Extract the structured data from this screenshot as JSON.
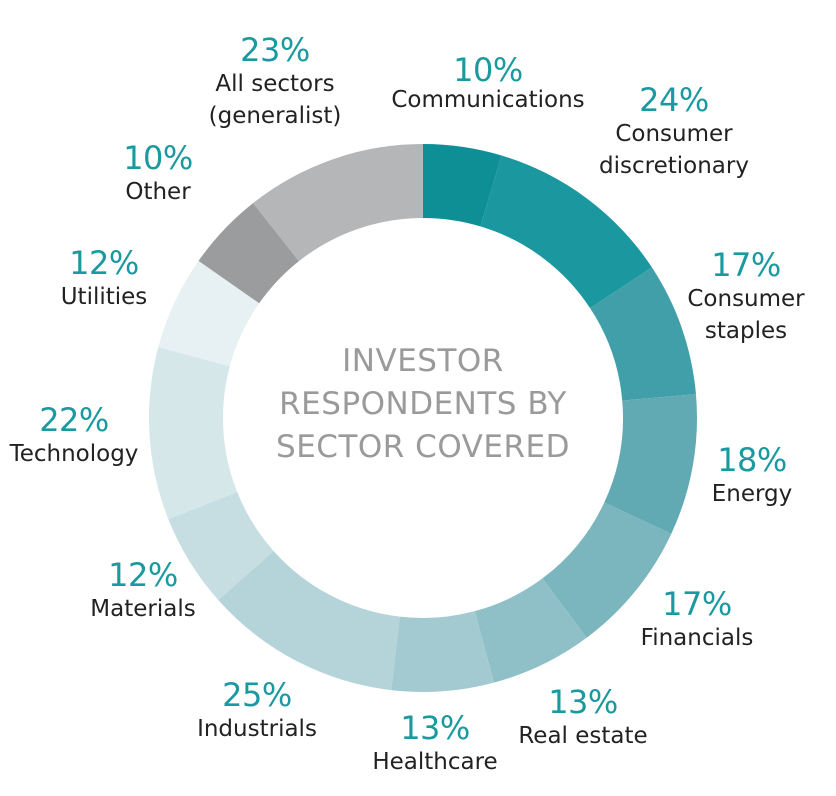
{
  "chart_data": {
    "type": "pie",
    "center_title": [
      "INVESTOR",
      "RESPONDENTS BY",
      "SECTOR COVERED"
    ],
    "slices": [
      {
        "id": "communications",
        "percent_label": "10%",
        "label_lines": [
          "Communications"
        ],
        "value": 10,
        "color": "#0e8f96"
      },
      {
        "id": "consumer-discretionary",
        "percent_label": "24%",
        "label_lines": [
          "Consumer",
          "discretionary"
        ],
        "value": 24,
        "color": "#1b97a0"
      },
      {
        "id": "consumer-staples",
        "percent_label": "17%",
        "label_lines": [
          "Consumer",
          "staples"
        ],
        "value": 17,
        "color": "#419fa9"
      },
      {
        "id": "energy",
        "percent_label": "18%",
        "label_lines": [
          "Energy"
        ],
        "value": 18,
        "color": "#62aab3"
      },
      {
        "id": "financials",
        "percent_label": "17%",
        "label_lines": [
          "Financials"
        ],
        "value": 17,
        "color": "#7bb5bd"
      },
      {
        "id": "real-estate",
        "percent_label": "13%",
        "label_lines": [
          "Real estate"
        ],
        "value": 13,
        "color": "#8fc0c7"
      },
      {
        "id": "healthcare",
        "percent_label": "13%",
        "label_lines": [
          "Healthcare"
        ],
        "value": 13,
        "color": "#a3cad0"
      },
      {
        "id": "industrials",
        "percent_label": "25%",
        "label_lines": [
          "Industrials"
        ],
        "value": 25,
        "color": "#b5d4d9"
      },
      {
        "id": "materials",
        "percent_label": "12%",
        "label_lines": [
          "Materials"
        ],
        "value": 12,
        "color": "#c6dee2"
      },
      {
        "id": "technology",
        "percent_label": "22%",
        "label_lines": [
          "Technology"
        ],
        "value": 22,
        "color": "#d6e7ea"
      },
      {
        "id": "utilities",
        "percent_label": "12%",
        "label_lines": [
          "Utilities"
        ],
        "value": 12,
        "color": "#e7f0f2"
      },
      {
        "id": "other",
        "percent_label": "10%",
        "label_lines": [
          "Other"
        ],
        "value": 10,
        "color": "#9b9c9d"
      },
      {
        "id": "all-sectors",
        "percent_label": "23%",
        "label_lines": [
          "All sectors",
          "(generalist)"
        ],
        "value": 23,
        "color": "#b5b6b7"
      }
    ]
  }
}
